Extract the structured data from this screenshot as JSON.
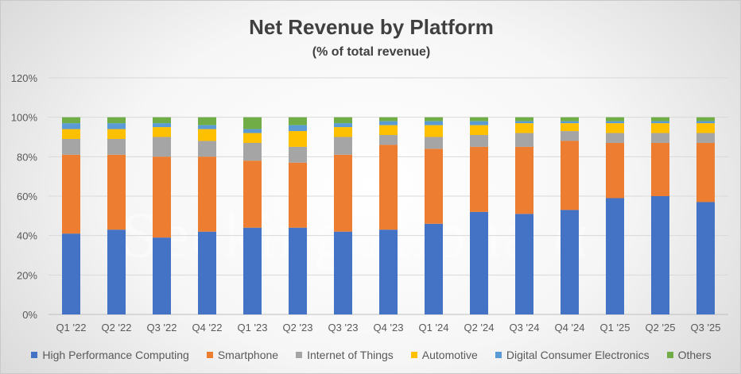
{
  "watermark": "Seeking Alpha α",
  "chart_data": {
    "type": "bar",
    "stacked": true,
    "title": "Net Revenue by Platform",
    "subtitle": "(% of total revenue)",
    "xlabel": "",
    "ylabel": "",
    "ylim": [
      0,
      120
    ],
    "yticks": [
      "0%",
      "20%",
      "40%",
      "60%",
      "80%",
      "100%",
      "120%"
    ],
    "grid": true,
    "legend_position": "bottom",
    "categories": [
      "Q1 '22",
      "Q2 '22",
      "Q3 '22",
      "Q4 '22",
      "Q1 '23",
      "Q2 '23",
      "Q3 '23",
      "Q4 '23",
      "Q1 '24",
      "Q2 '24",
      "Q3 '24",
      "Q4 '24",
      "Q1 '25",
      "Q2 '25",
      "Q3 '25"
    ],
    "series": [
      {
        "name": "High Performance Computing",
        "color": "#4472c4",
        "values": [
          41,
          43,
          39,
          42,
          44,
          44,
          42,
          43,
          46,
          52,
          51,
          53,
          59,
          60,
          57
        ]
      },
      {
        "name": "Smartphone",
        "color": "#ed7d31",
        "values": [
          40,
          38,
          41,
          38,
          34,
          33,
          39,
          43,
          38,
          33,
          34,
          35,
          28,
          27,
          30
        ]
      },
      {
        "name": "Internet of Things",
        "color": "#a5a5a5",
        "values": [
          8,
          8,
          10,
          8,
          9,
          8,
          9,
          5,
          6,
          6,
          7,
          5,
          5,
          5,
          5
        ]
      },
      {
        "name": "Automotive",
        "color": "#ffc000",
        "values": [
          5,
          5,
          5,
          6,
          5,
          8,
          5,
          5,
          6,
          5,
          5,
          4,
          5,
          5,
          5
        ]
      },
      {
        "name": "Digital Consumer Electronics",
        "color": "#5b9bd5",
        "values": [
          3,
          3,
          2,
          2,
          2,
          3,
          2,
          2,
          2,
          2,
          1,
          1,
          1,
          1,
          1
        ]
      },
      {
        "name": "Others",
        "color": "#70ad47",
        "values": [
          3,
          3,
          3,
          4,
          6,
          4,
          3,
          2,
          2,
          2,
          2,
          2,
          2,
          2,
          2
        ]
      }
    ]
  }
}
